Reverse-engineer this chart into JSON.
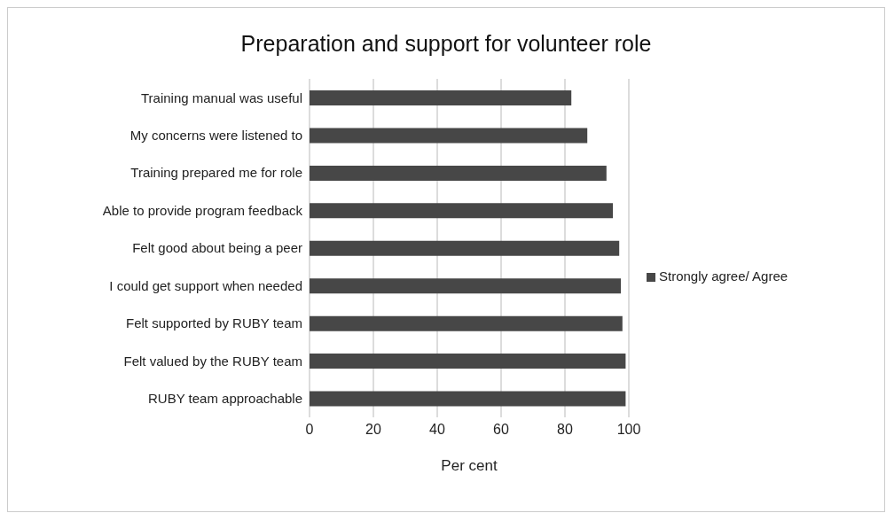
{
  "chart_data": {
    "type": "bar",
    "orientation": "horizontal",
    "title": "Preparation and support for volunteer role",
    "xlabel": "Per cent",
    "categories": [
      "Training manual was useful",
      "My concerns were listened to",
      "Training prepared me for role",
      "Able to provide program feedback",
      "Felt good about being a peer",
      "I could get support when needed",
      "Felt supported by RUBY team",
      "Felt valued by the RUBY team",
      "RUBY team approachable"
    ],
    "series": [
      {
        "name": "Strongly agree/ Agree",
        "color": "#474747",
        "values": [
          82,
          87,
          93,
          95,
          97,
          97.5,
          98,
          99,
          99
        ]
      }
    ],
    "xlim": [
      0,
      100
    ],
    "xticks": [
      0,
      20,
      40,
      60,
      80,
      100
    ],
    "grid": "x",
    "legend": "right"
  }
}
